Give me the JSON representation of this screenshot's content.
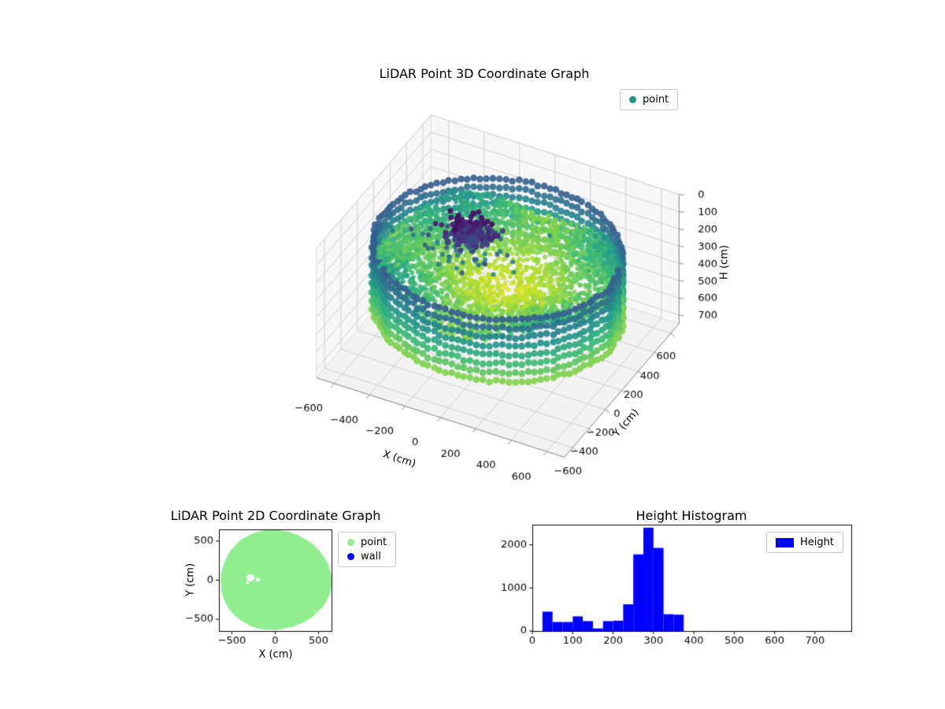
{
  "chart_data": [
    {
      "type": "scatter",
      "projection": "3d",
      "title": "LiDAR Point 3D Coordinate Graph",
      "xlabel": "X (cm)",
      "ylabel": "Y (cm)",
      "zlabel": "H (cm)",
      "xlim": [
        -700,
        700
      ],
      "ylim": [
        -700,
        700
      ],
      "zlim": [
        0,
        750
      ],
      "zaxis_inverted": true,
      "xticks": [
        -600,
        -400,
        -200,
        0,
        200,
        400,
        600
      ],
      "yticks": [
        600,
        400,
        200,
        0,
        -200,
        -400,
        -600
      ],
      "zticks": [
        0,
        100,
        200,
        300,
        400,
        500,
        600,
        700
      ],
      "legend": [
        {
          "label": "point",
          "color": "#21918c",
          "marker": "dot"
        }
      ],
      "colormap": "viridis",
      "cloud": {
        "description": "Disc-shaped LiDAR point cloud colored by height (viridis: low heights dark purple, mid teal, high yellow-green); dense dark-purple cluster of low points near centre; teal ring of wall points around the rim",
        "disc_radius_cm": 620,
        "disc_points": 2600,
        "disc_height_range_cm": [
          180,
          390
        ],
        "cluster_center_cm": [
          -126,
          -83
        ],
        "cluster_sigma_cm": 55,
        "cluster_points": 210,
        "cluster_height_range_cm": [
          15,
          105
        ],
        "ring_columns": 120,
        "ring_rows": 8,
        "ring_radius_cm": 640,
        "ring_height_range_cm": [
          160,
          520
        ]
      }
    },
    {
      "type": "scatter",
      "title": "LiDAR Point 2D Coordinate Graph",
      "xlabel": "X (cm)",
      "ylabel": "Y (cm)",
      "xlim": [
        -650,
        650
      ],
      "ylim": [
        -650,
        650
      ],
      "xticks": [
        -500,
        0,
        500
      ],
      "yticks": [
        -500,
        0,
        500
      ],
      "legend": [
        {
          "label": "point",
          "color": "#90ee90",
          "marker": "dot"
        },
        {
          "label": "wall",
          "color": "#0000ff",
          "marker": "dot"
        }
      ],
      "series": [
        {
          "name": "point",
          "color": "#90ee90",
          "shape": "filled disc",
          "center": [
            0,
            0
          ],
          "radius_cm": 640,
          "holes": [
            {
              "center": [
                -286,
                30
              ],
              "r": 45
            },
            {
              "center": [
                -200,
                5
              ],
              "r": 25
            },
            {
              "center": [
                -320,
                -30
              ],
              "r": 18
            }
          ]
        },
        {
          "name": "wall",
          "color": "#0000ff",
          "note": "wall ring points hidden beneath the point disc"
        }
      ]
    },
    {
      "type": "bar",
      "title": "Height Histogram",
      "xlabel": "",
      "ylabel": "",
      "legend": [
        {
          "label": "Height",
          "color": "#0000ff",
          "marker": "rect"
        }
      ],
      "bin_edges": [
        25,
        50,
        75,
        100,
        125,
        150,
        175,
        200,
        225,
        250,
        275,
        300,
        325,
        350,
        375
      ],
      "values": [
        450,
        210,
        210,
        340,
        230,
        60,
        230,
        240,
        620,
        1780,
        2400,
        1930,
        390,
        380
      ],
      "bar_color": "#0000ff",
      "xticks": [
        0,
        100,
        200,
        300,
        400,
        500,
        600,
        700
      ],
      "yticks": [
        0,
        1000,
        2000
      ],
      "xlim": [
        0,
        790
      ],
      "ylim": [
        0,
        2470
      ]
    }
  ]
}
